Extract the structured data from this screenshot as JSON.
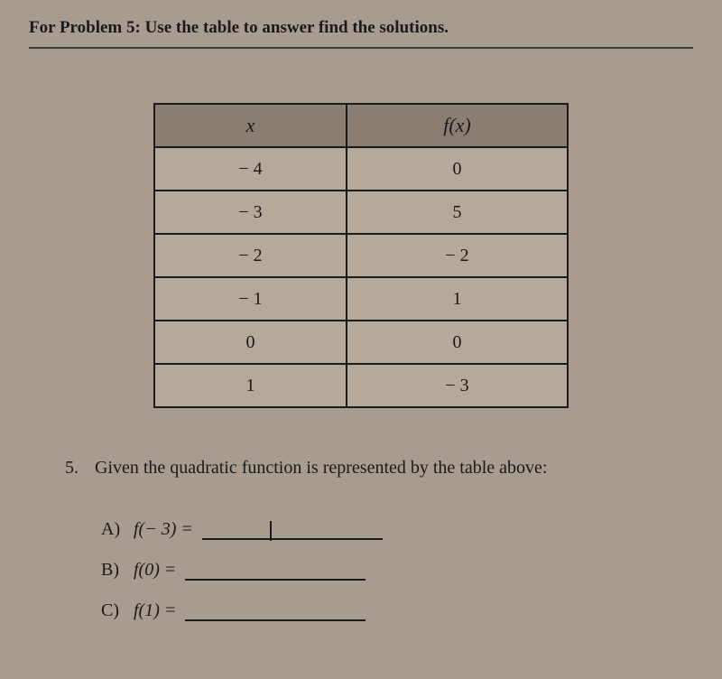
{
  "instruction": "For Problem 5: Use the table to answer find the solutions.",
  "table": {
    "header_x": "x",
    "header_fx": "f(x)",
    "rows": [
      {
        "x": "− 4",
        "fx": "0"
      },
      {
        "x": "− 3",
        "fx": "5"
      },
      {
        "x": "− 2",
        "fx": "− 2"
      },
      {
        "x": "− 1",
        "fx": "1"
      },
      {
        "x": "0",
        "fx": "0"
      },
      {
        "x": "1",
        "fx": "− 3"
      }
    ]
  },
  "question": {
    "number": "5.",
    "text": "Given the quadratic function is represented by the table above:"
  },
  "parts": {
    "a": {
      "label": "A)",
      "expr": "f(− 3) ="
    },
    "b": {
      "label": "B)",
      "expr": "f(0) ="
    },
    "c": {
      "label": "C)",
      "expr": "f(1) ="
    }
  },
  "colors": {
    "background": "#a89b8f",
    "cell_bg": "#b5a99b",
    "header_bg": "#8a7e72",
    "text": "#1a1a1a",
    "border": "#1a1a1a"
  }
}
